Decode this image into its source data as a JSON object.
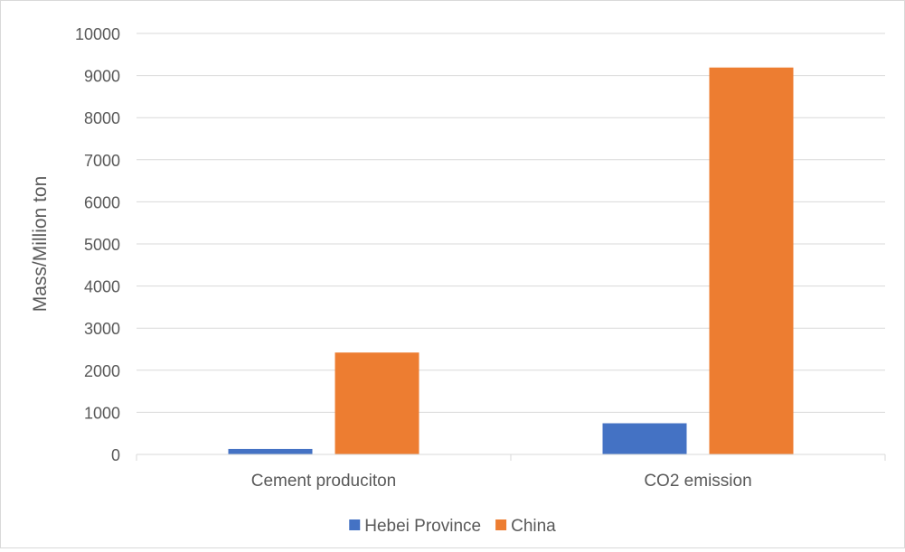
{
  "chart_data": {
    "type": "bar",
    "title": "",
    "xlabel": "",
    "ylabel": "Mass/Million ton",
    "ylim": [
      0,
      10000
    ],
    "yticks": [
      0,
      1000,
      2000,
      3000,
      4000,
      5000,
      6000,
      7000,
      8000,
      9000,
      10000
    ],
    "grid": true,
    "legend_position": "bottom",
    "categories": [
      "Cement produciton",
      "CO2 emission"
    ],
    "series": [
      {
        "name": "Hebei Province",
        "color": "#4472c4",
        "values": [
          130,
          740
        ]
      },
      {
        "name": "China",
        "color": "#ed7d31",
        "values": [
          2420,
          9190
        ]
      }
    ]
  }
}
